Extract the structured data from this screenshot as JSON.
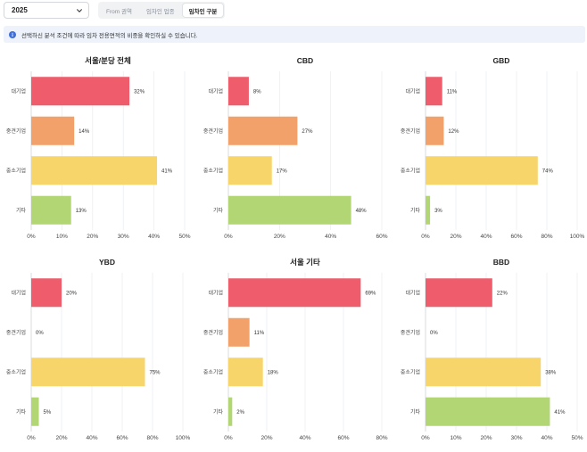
{
  "toolbar": {
    "year": "2025",
    "tabs": [
      {
        "label": "From 권역",
        "active": false
      },
      {
        "label": "임차인 업종",
        "active": false
      },
      {
        "label": "임차인 구분",
        "active": true
      }
    ]
  },
  "info": {
    "text": "선택하신 분석 조건에 따라 임차 전용면적의 비중을 확인하실 수 있습니다."
  },
  "colors": {
    "대기업": "#ef5d6c",
    "중견기업": "#f2a16a",
    "중소기업": "#f7d56a",
    "기타": "#b3d675"
  },
  "chart_data": [
    {
      "type": "bar",
      "title": "서울/분당 전체",
      "categories": [
        "대기업",
        "중견기업",
        "중소기업",
        "기타"
      ],
      "values": [
        32,
        14,
        41,
        13
      ],
      "value_labels": [
        "32%",
        "14%",
        "41%",
        "13%"
      ],
      "xlim": [
        0,
        50
      ],
      "xticks": [
        "0%",
        "10%",
        "20%",
        "30%",
        "40%",
        "50%"
      ]
    },
    {
      "type": "bar",
      "title": "CBD",
      "categories": [
        "대기업",
        "중견기업",
        "중소기업",
        "기타"
      ],
      "values": [
        8,
        27,
        17,
        48
      ],
      "value_labels": [
        "8%",
        "27%",
        "17%",
        "48%"
      ],
      "xlim": [
        0,
        60
      ],
      "xticks": [
        "0%",
        "20%",
        "40%",
        "60%"
      ]
    },
    {
      "type": "bar",
      "title": "GBD",
      "categories": [
        "대기업",
        "중견기업",
        "중소기업",
        "기타"
      ],
      "values": [
        11,
        12,
        74,
        3
      ],
      "value_labels": [
        "11%",
        "12%",
        "74%",
        "3%"
      ],
      "xlim": [
        0,
        100
      ],
      "xticks": [
        "0%",
        "20%",
        "40%",
        "60%",
        "80%",
        "100%"
      ]
    },
    {
      "type": "bar",
      "title": "YBD",
      "categories": [
        "대기업",
        "중견기업",
        "중소기업",
        "기타"
      ],
      "values": [
        20,
        0,
        75,
        5
      ],
      "value_labels": [
        "20%",
        "0%",
        "75%",
        "5%"
      ],
      "xlim": [
        0,
        100
      ],
      "xticks": [
        "0%",
        "20%",
        "40%",
        "60%",
        "80%",
        "100%"
      ]
    },
    {
      "type": "bar",
      "title": "서울 기타",
      "categories": [
        "대기업",
        "중견기업",
        "중소기업",
        "기타"
      ],
      "values": [
        69,
        11,
        18,
        2
      ],
      "value_labels": [
        "69%",
        "11%",
        "18%",
        "2%"
      ],
      "xlim": [
        0,
        80
      ],
      "xticks": [
        "0%",
        "20%",
        "40%",
        "60%",
        "80%"
      ]
    },
    {
      "type": "bar",
      "title": "BBD",
      "categories": [
        "대기업",
        "중견기업",
        "중소기업",
        "기타"
      ],
      "values": [
        22,
        0,
        38,
        41
      ],
      "value_labels": [
        "22%",
        "0%",
        "38%",
        "41%"
      ],
      "xlim": [
        0,
        50
      ],
      "xticks": [
        "0%",
        "10%",
        "20%",
        "30%",
        "40%",
        "50%"
      ]
    }
  ]
}
